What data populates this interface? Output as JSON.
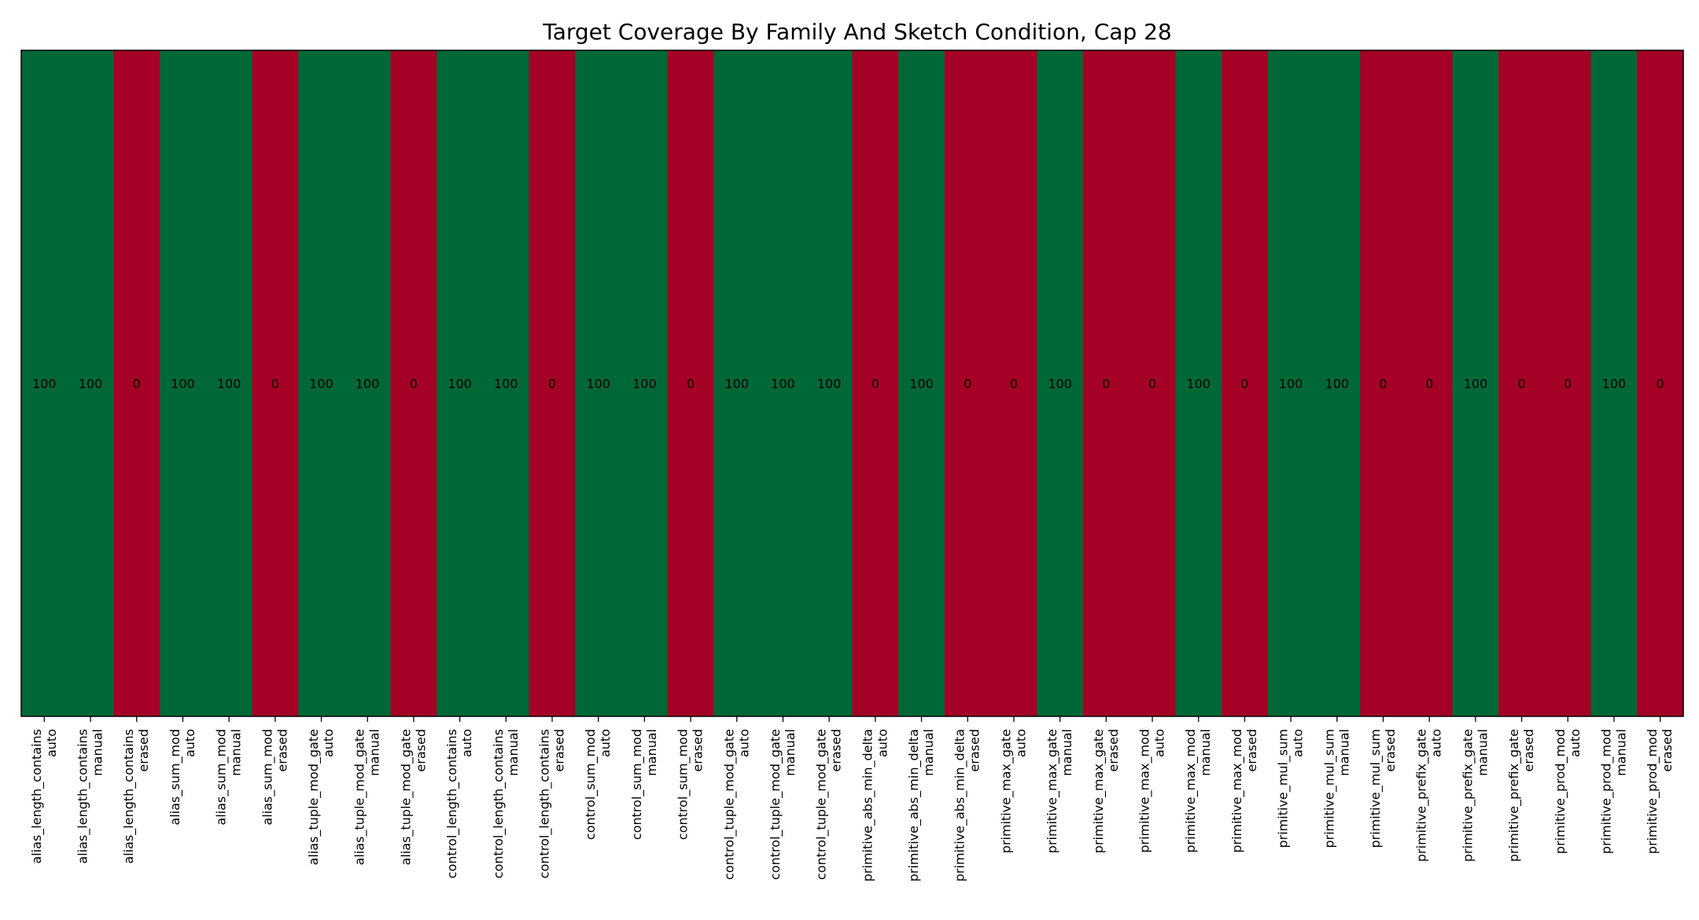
{
  "chart_data": {
    "type": "heatmap",
    "title": "Target Coverage By Family And Sketch Condition, Cap 28",
    "xlabel": "",
    "ylabel": "",
    "rows": [
      ""
    ],
    "columns": [
      [
        "alias_length_contains",
        "auto"
      ],
      [
        "alias_length_contains",
        "manual"
      ],
      [
        "alias_length_contains",
        "erased"
      ],
      [
        "alias_sum_mod",
        "auto"
      ],
      [
        "alias_sum_mod",
        "manual"
      ],
      [
        "alias_sum_mod",
        "erased"
      ],
      [
        "alias_tuple_mod_gate",
        "auto"
      ],
      [
        "alias_tuple_mod_gate",
        "manual"
      ],
      [
        "alias_tuple_mod_gate",
        "erased"
      ],
      [
        "control_length_contains",
        "auto"
      ],
      [
        "control_length_contains",
        "manual"
      ],
      [
        "control_length_contains",
        "erased"
      ],
      [
        "control_sum_mod",
        "auto"
      ],
      [
        "control_sum_mod",
        "manual"
      ],
      [
        "control_sum_mod",
        "erased"
      ],
      [
        "control_tuple_mod_gate",
        "auto"
      ],
      [
        "control_tuple_mod_gate",
        "manual"
      ],
      [
        "control_tuple_mod_gate",
        "erased"
      ],
      [
        "primitive_abs_min_delta",
        "auto"
      ],
      [
        "primitive_abs_min_delta",
        "manual"
      ],
      [
        "primitive_abs_min_delta",
        "erased"
      ],
      [
        "primitive_max_gate",
        "auto"
      ],
      [
        "primitive_max_gate",
        "manual"
      ],
      [
        "primitive_max_gate",
        "erased"
      ],
      [
        "primitive_max_mod",
        "auto"
      ],
      [
        "primitive_max_mod",
        "manual"
      ],
      [
        "primitive_max_mod",
        "erased"
      ],
      [
        "primitive_mul_sum",
        "auto"
      ],
      [
        "primitive_mul_sum",
        "manual"
      ],
      [
        "primitive_mul_sum",
        "erased"
      ],
      [
        "primitive_prefix_gate",
        "auto"
      ],
      [
        "primitive_prefix_gate",
        "manual"
      ],
      [
        "primitive_prefix_gate",
        "erased"
      ],
      [
        "primitive_prod_mod",
        "auto"
      ],
      [
        "primitive_prod_mod",
        "manual"
      ],
      [
        "primitive_prod_mod",
        "erased"
      ]
    ],
    "values": [
      [
        100,
        100,
        0,
        100,
        100,
        0,
        100,
        100,
        0,
        100,
        100,
        0,
        100,
        100,
        0,
        100,
        100,
        100,
        0,
        100,
        0,
        0,
        100,
        0,
        0,
        100,
        0,
        100,
        100,
        0,
        0,
        100,
        0,
        0,
        100,
        0
      ]
    ],
    "value_range": [
      0,
      100
    ],
    "colors": {
      "high": "#006837",
      "low": "#a50026"
    },
    "grid": false,
    "colorbar": false
  }
}
